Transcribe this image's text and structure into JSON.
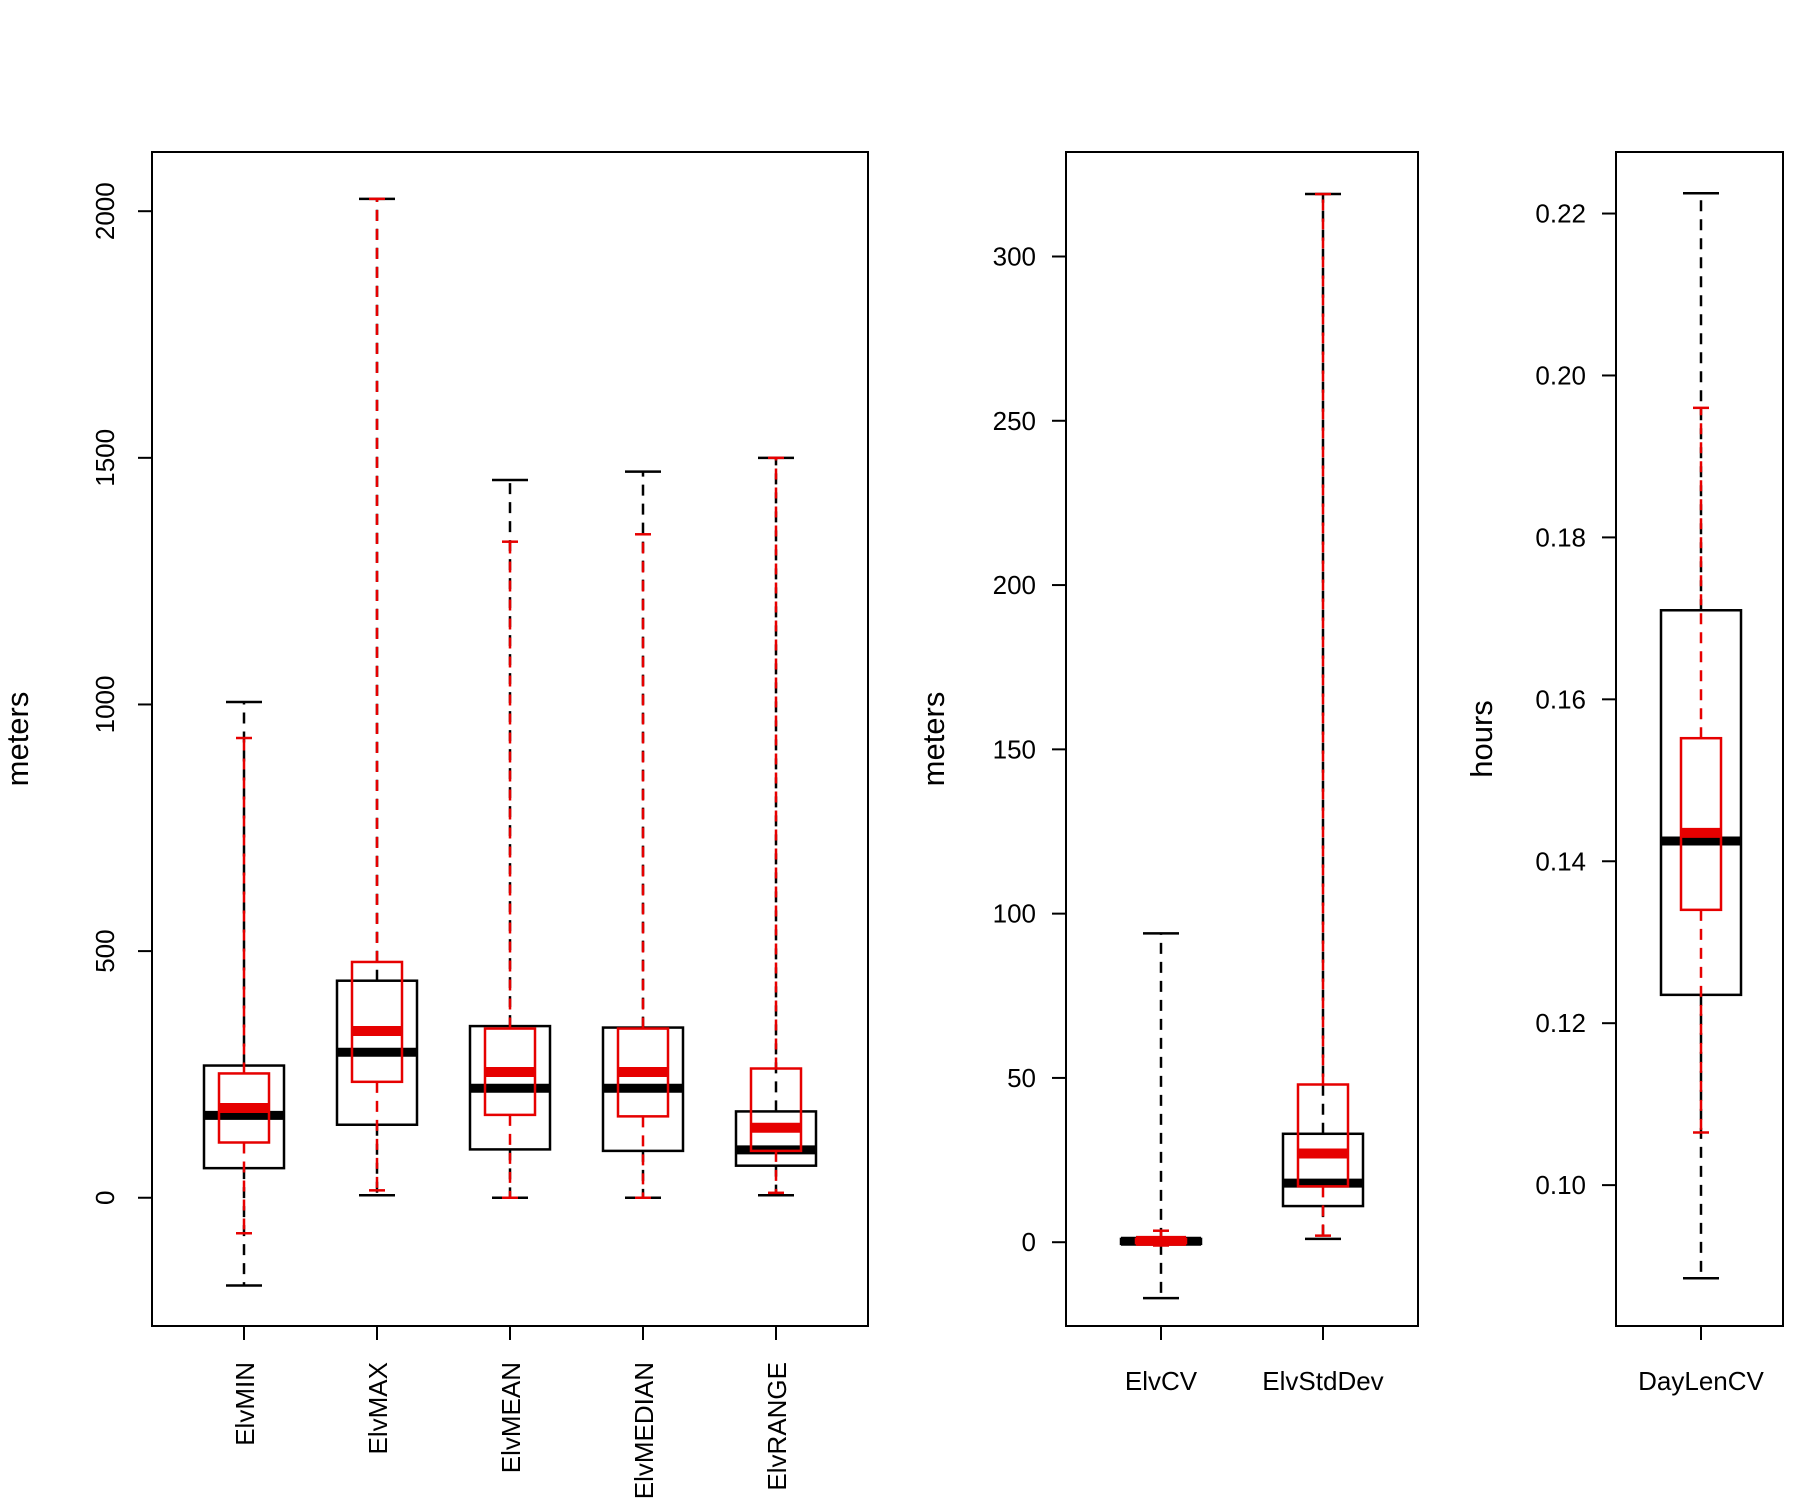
{
  "colors": {
    "primary": "#000000",
    "overlay": "#e60000",
    "background": "#ffffff"
  },
  "chart_data": [
    {
      "type": "boxplot",
      "title": "",
      "xlabel": "",
      "ylabel": "meters",
      "ylim": [
        -260,
        2120
      ],
      "yticks": [
        0,
        500,
        1000,
        1500,
        2000
      ],
      "ytick_rotation": "vertical",
      "xtick_rotation": "vertical",
      "categories": [
        "ElvMIN",
        "ElvMAX",
        "ElvMEAN",
        "ElvMEDIAN",
        "ElvRANGE"
      ],
      "series": [
        {
          "color": "#000000",
          "style": "solid box, dashed whiskers",
          "boxes": [
            {
              "whisker_low": -178,
              "q1": 60,
              "median": 167,
              "q3": 268,
              "whisker_high": 1005
            },
            {
              "whisker_low": 5,
              "q1": 148,
              "median": 295,
              "q3": 440,
              "whisker_high": 2025
            },
            {
              "whisker_low": 0,
              "q1": 98,
              "median": 222,
              "q3": 348,
              "whisker_high": 1455
            },
            {
              "whisker_low": 0,
              "q1": 95,
              "median": 222,
              "q3": 345,
              "whisker_high": 1472
            },
            {
              "whisker_low": 5,
              "q1": 65,
              "median": 97,
              "q3": 175,
              "whisker_high": 1500
            }
          ]
        },
        {
          "color": "#e60000",
          "style": "narrow box overlay, dashed whiskers",
          "boxes": [
            {
              "whisker_low": -72,
              "q1": 112,
              "median": 182,
              "q3": 252,
              "whisker_high": 932
            },
            {
              "whisker_low": 15,
              "q1": 235,
              "median": 338,
              "q3": 478,
              "whisker_high": 2025
            },
            {
              "whisker_low": 0,
              "q1": 168,
              "median": 255,
              "q3": 343,
              "whisker_high": 1330
            },
            {
              "whisker_low": 0,
              "q1": 165,
              "median": 255,
              "q3": 343,
              "whisker_high": 1345
            },
            {
              "whisker_low": 10,
              "q1": 95,
              "median": 142,
              "q3": 262,
              "whisker_high": 1500
            }
          ]
        }
      ]
    },
    {
      "type": "boxplot",
      "title": "",
      "xlabel": "",
      "ylabel": "meters",
      "ylim": [
        -25.5,
        331.8
      ],
      "yticks": [
        0,
        50,
        100,
        150,
        200,
        250,
        300
      ],
      "ytick_rotation": "horizontal",
      "xtick_rotation": "horizontal",
      "categories": [
        "ElvCV",
        "ElvStdDev"
      ],
      "series": [
        {
          "color": "#000000",
          "style": "solid box, dashed whiskers",
          "boxes": [
            {
              "whisker_low": -17,
              "q1": -0.5,
              "median": 0.3,
              "q3": 1,
              "whisker_high": 94
            },
            {
              "whisker_low": 1,
              "q1": 11,
              "median": 18,
              "q3": 33,
              "whisker_high": 319
            }
          ]
        },
        {
          "color": "#e60000",
          "style": "narrow box overlay, dashed whiskers",
          "boxes": [
            {
              "whisker_low": -1,
              "q1": -0.3,
              "median": 0.4,
              "q3": 1,
              "whisker_high": 3.5
            },
            {
              "whisker_low": 2,
              "q1": 17,
              "median": 27,
              "q3": 48,
              "whisker_high": 319
            }
          ]
        }
      ]
    },
    {
      "type": "boxplot",
      "title": "",
      "xlabel": "",
      "ylabel": "hours",
      "ylim": [
        0.0826,
        0.2276
      ],
      "yticks": [
        "0.10",
        "0.12",
        "0.14",
        "0.16",
        "0.18",
        "0.20",
        "0.22"
      ],
      "ytick_rotation": "horizontal",
      "xtick_rotation": "horizontal",
      "categories": [
        "DayLenCV"
      ],
      "series": [
        {
          "color": "#000000",
          "style": "solid box, dashed whiskers",
          "boxes": [
            {
              "whisker_low": 0.0885,
              "q1": 0.1235,
              "median": 0.1425,
              "q3": 0.171,
              "whisker_high": 0.2225
            }
          ]
        },
        {
          "color": "#e60000",
          "style": "narrow box overlay, dashed whiskers",
          "boxes": [
            {
              "whisker_low": 0.1065,
              "q1": 0.134,
              "median": 0.1435,
              "q3": 0.1552,
              "whisker_high": 0.196
            }
          ]
        }
      ]
    }
  ]
}
